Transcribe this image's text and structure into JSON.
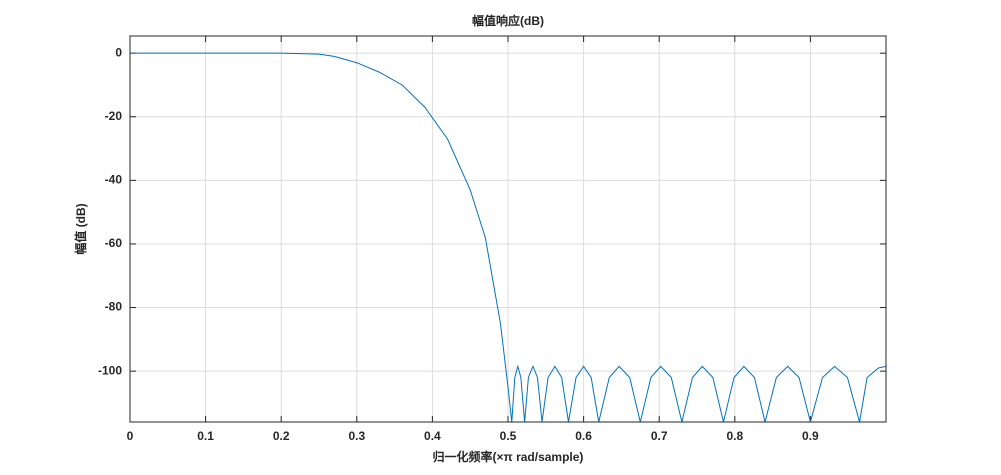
{
  "chart_data": {
    "type": "line",
    "title": "幅值响应(dB)",
    "x_label": "归一化频率(×π rad/sample)",
    "y_label": "幅值 (dB)",
    "xlim": [
      0,
      1
    ],
    "ylim": [
      -116,
      5.4
    ],
    "xticks": [
      0,
      0.1,
      0.2,
      0.3,
      0.4,
      0.5,
      0.6,
      0.7,
      0.8,
      0.9
    ],
    "yticks": [
      -100,
      -80,
      -60,
      -40,
      -20,
      0
    ],
    "grid": true,
    "series": [
      {
        "color": "#0072bd",
        "x": [
          0,
          0.05,
          0.1,
          0.15,
          0.2,
          0.25,
          0.27,
          0.3,
          0.33,
          0.36,
          0.39,
          0.42,
          0.45,
          0.47,
          0.49,
          0.5,
          0.505,
          0.509,
          0.513,
          0.517,
          0.522,
          0.527,
          0.533,
          0.539,
          0.545,
          0.553,
          0.562,
          0.571,
          0.58,
          0.59,
          0.6,
          0.61,
          0.62,
          0.634,
          0.647,
          0.661,
          0.675,
          0.689,
          0.702,
          0.716,
          0.73,
          0.744,
          0.757,
          0.771,
          0.785,
          0.799,
          0.812,
          0.826,
          0.84,
          0.855,
          0.87,
          0.885,
          0.9,
          0.916,
          0.932,
          0.949,
          0.965,
          0.975,
          0.99,
          1
        ],
        "values": [
          0,
          0,
          0,
          0,
          0,
          -0.3,
          -1,
          -3,
          -6,
          -10,
          -17,
          -27,
          -43,
          -58,
          -85,
          -105,
          -116,
          -102,
          -98.5,
          -102,
          -116,
          -102,
          -98.5,
          -102,
          -116,
          -102,
          -98.5,
          -102,
          -116,
          -102,
          -98.5,
          -102,
          -116,
          -102,
          -98.5,
          -102,
          -116,
          -102,
          -98.5,
          -102,
          -116,
          -102,
          -98.5,
          -102,
          -116,
          -102,
          -98.5,
          -102,
          -116,
          -102,
          -98.5,
          -102,
          -116,
          -102,
          -98.5,
          -102,
          -116,
          -102,
          -99,
          -98.5
        ]
      }
    ]
  }
}
